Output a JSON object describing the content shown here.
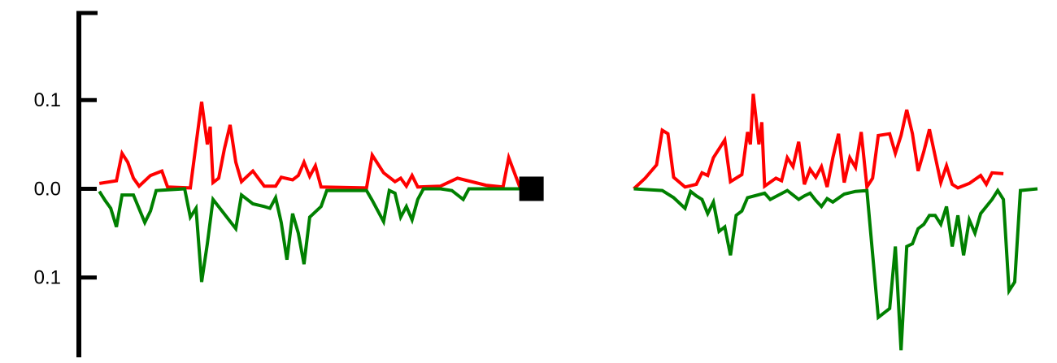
{
  "chart_data": {
    "type": "line",
    "title": "",
    "xlabel": "",
    "ylabel": "",
    "ylim": [
      -0.19,
      0.2
    ],
    "yticks": [
      {
        "value": 0.1,
        "label": "0.1"
      },
      {
        "value": 0.0,
        "label": "0.0"
      },
      {
        "value": -0.1,
        "label": "0.1"
      }
    ],
    "grid": false,
    "legend": "none",
    "series": [
      {
        "color": "#ff0000",
        "segments": [
          [
            [
              1,
              0.006
            ],
            [
              4,
              0.009
            ],
            [
              5,
              0.04
            ],
            [
              6,
              0.03
            ],
            [
              7,
              0.012
            ],
            [
              8,
              0.003
            ],
            [
              10,
              0.015
            ],
            [
              12,
              0.02
            ],
            [
              13,
              0.002
            ],
            [
              17,
              0.001
            ],
            [
              18,
              0.05
            ],
            [
              19,
              0.098
            ],
            [
              20,
              0.05
            ],
            [
              20.5,
              0.07
            ],
            [
              21,
              0.007
            ],
            [
              22,
              0.012
            ],
            [
              23,
              0.045
            ],
            [
              24,
              0.072
            ],
            [
              25,
              0.03
            ],
            [
              26,
              0.008
            ],
            [
              28,
              0.02
            ],
            [
              30,
              0.003
            ],
            [
              32,
              0.003
            ],
            [
              33,
              0.013
            ],
            [
              35,
              0.01
            ],
            [
              36,
              0.015
            ],
            [
              37,
              0.03
            ],
            [
              38,
              0.014
            ],
            [
              39,
              0.026
            ],
            [
              40,
              0.002
            ],
            [
              48,
              0.001
            ],
            [
              49,
              0.038
            ],
            [
              51,
              0.018
            ],
            [
              53,
              0.008
            ],
            [
              54,
              0.012
            ],
            [
              55,
              0.003
            ],
            [
              56,
              0.015
            ],
            [
              57,
              0.002
            ],
            [
              61,
              0.003
            ],
            [
              64,
              0.012
            ],
            [
              69,
              0.004
            ],
            [
              72,
              0.002
            ],
            [
              73,
              0.035
            ],
            [
              75,
              0.001
            ],
            [
              76,
              0.0
            ]
          ],
          [
            [
              95,
              0.0
            ],
            [
              97,
              0.012
            ],
            [
              99,
              0.027
            ],
            [
              100,
              0.066
            ],
            [
              101,
              0.062
            ],
            [
              102,
              0.013
            ],
            [
              104,
              0.002
            ],
            [
              106,
              0.005
            ],
            [
              107,
              0.018
            ],
            [
              108,
              0.015
            ],
            [
              109,
              0.035
            ],
            [
              110,
              0.045
            ],
            [
              111,
              0.055
            ],
            [
              112,
              0.008
            ],
            [
              114,
              0.016
            ],
            [
              115,
              0.064
            ],
            [
              115.5,
              0.05
            ],
            [
              116,
              0.107
            ],
            [
              117,
              0.05
            ],
            [
              117.5,
              0.075
            ],
            [
              118,
              0.003
            ],
            [
              120,
              0.012
            ],
            [
              121,
              0.009
            ],
            [
              122,
              0.035
            ],
            [
              123,
              0.025
            ],
            [
              124,
              0.053
            ],
            [
              125,
              0.005
            ],
            [
              126,
              0.022
            ],
            [
              127,
              0.013
            ],
            [
              128,
              0.025
            ],
            [
              129,
              0.002
            ],
            [
              130,
              0.035
            ],
            [
              131,
              0.062
            ],
            [
              132,
              0.007
            ],
            [
              133,
              0.035
            ],
            [
              134,
              0.024
            ],
            [
              135,
              0.064
            ],
            [
              136,
              0.002
            ],
            [
              137,
              0.012
            ],
            [
              138,
              0.06
            ],
            [
              140,
              0.062
            ],
            [
              141,
              0.04
            ],
            [
              142,
              0.06
            ],
            [
              143,
              0.089
            ],
            [
              144,
              0.062
            ],
            [
              145,
              0.02
            ],
            [
              146,
              0.042
            ],
            [
              147,
              0.067
            ],
            [
              148,
              0.037
            ],
            [
              149,
              0.007
            ],
            [
              150,
              0.026
            ],
            [
              151,
              0.005
            ],
            [
              152,
              0.001
            ],
            [
              154,
              0.006
            ],
            [
              156,
              0.015
            ],
            [
              157,
              0.005
            ],
            [
              158,
              0.018
            ],
            [
              160,
              0.017
            ]
          ]
        ]
      },
      {
        "color": "#008000",
        "segments": [
          [
            [
              1,
              -0.003
            ],
            [
              2,
              -0.013
            ],
            [
              3,
              -0.022
            ],
            [
              4,
              -0.043
            ],
            [
              5,
              -0.007
            ],
            [
              7,
              -0.007
            ],
            [
              9,
              -0.038
            ],
            [
              10,
              -0.025
            ],
            [
              11,
              -0.002
            ],
            [
              16,
              0.0
            ],
            [
              17,
              -0.032
            ],
            [
              18,
              -0.022
            ],
            [
              19,
              -0.105
            ],
            [
              20,
              -0.062
            ],
            [
              21,
              -0.012
            ],
            [
              25,
              -0.045
            ],
            [
              26,
              -0.007
            ],
            [
              28,
              -0.017
            ],
            [
              30,
              -0.02
            ],
            [
              31,
              -0.022
            ],
            [
              32,
              -0.01
            ],
            [
              33,
              -0.038
            ],
            [
              34,
              -0.08
            ],
            [
              35,
              -0.028
            ],
            [
              36,
              -0.05
            ],
            [
              37,
              -0.085
            ],
            [
              38,
              -0.032
            ],
            [
              40,
              -0.02
            ],
            [
              41,
              -0.002
            ],
            [
              48,
              -0.002
            ],
            [
              49,
              -0.013
            ],
            [
              50,
              -0.025
            ],
            [
              51,
              -0.037
            ],
            [
              52,
              -0.002
            ],
            [
              53,
              -0.005
            ],
            [
              54,
              -0.032
            ],
            [
              55,
              -0.02
            ],
            [
              56,
              -0.035
            ],
            [
              57,
              -0.012
            ],
            [
              58,
              0.0
            ],
            [
              61,
              0.0
            ],
            [
              63,
              -0.002
            ],
            [
              65,
              -0.012
            ],
            [
              66,
              0.0
            ],
            [
              76,
              0.0
            ]
          ],
          [
            [
              95,
              0.0
            ],
            [
              100,
              -0.002
            ],
            [
              102,
              -0.01
            ],
            [
              104,
              -0.022
            ],
            [
              105,
              -0.003
            ],
            [
              106,
              -0.008
            ],
            [
              107,
              -0.012
            ],
            [
              108,
              -0.028
            ],
            [
              109,
              -0.015
            ],
            [
              110,
              -0.048
            ],
            [
              111,
              -0.043
            ],
            [
              112,
              -0.075
            ],
            [
              113,
              -0.03
            ],
            [
              114,
              -0.025
            ],
            [
              115,
              -0.01
            ],
            [
              118,
              -0.005
            ],
            [
              119,
              -0.012
            ],
            [
              122,
              -0.002
            ],
            [
              124,
              -0.012
            ],
            [
              125,
              -0.008
            ],
            [
              126,
              -0.005
            ],
            [
              127,
              -0.013
            ],
            [
              128,
              -0.02
            ],
            [
              129,
              -0.011
            ],
            [
              130,
              -0.015
            ],
            [
              132,
              -0.006
            ],
            [
              134,
              -0.003
            ],
            [
              136,
              -0.002
            ],
            [
              138,
              -0.145
            ],
            [
              140,
              -0.135
            ],
            [
              141,
              -0.065
            ],
            [
              142,
              -0.182
            ],
            [
              143,
              -0.065
            ],
            [
              144,
              -0.062
            ],
            [
              145,
              -0.045
            ],
            [
              146,
              -0.04
            ],
            [
              147,
              -0.03
            ],
            [
              148,
              -0.03
            ],
            [
              149,
              -0.04
            ],
            [
              150,
              -0.02
            ],
            [
              151,
              -0.065
            ],
            [
              152,
              -0.03
            ],
            [
              153,
              -0.075
            ],
            [
              154,
              -0.035
            ],
            [
              155,
              -0.05
            ],
            [
              156,
              -0.028
            ],
            [
              157,
              -0.02
            ],
            [
              158,
              -0.012
            ],
            [
              159,
              -0.002
            ],
            [
              160,
              -0.012
            ],
            [
              161,
              -0.115
            ],
            [
              162,
              -0.105
            ],
            [
              163,
              -0.002
            ],
            [
              166,
              0.0
            ]
          ]
        ]
      }
    ],
    "annotations": [
      {
        "type": "square-marker",
        "x": 77,
        "y": 0.0,
        "color": "#000000"
      }
    ],
    "xlim": [
      -2.6,
      168
    ]
  }
}
